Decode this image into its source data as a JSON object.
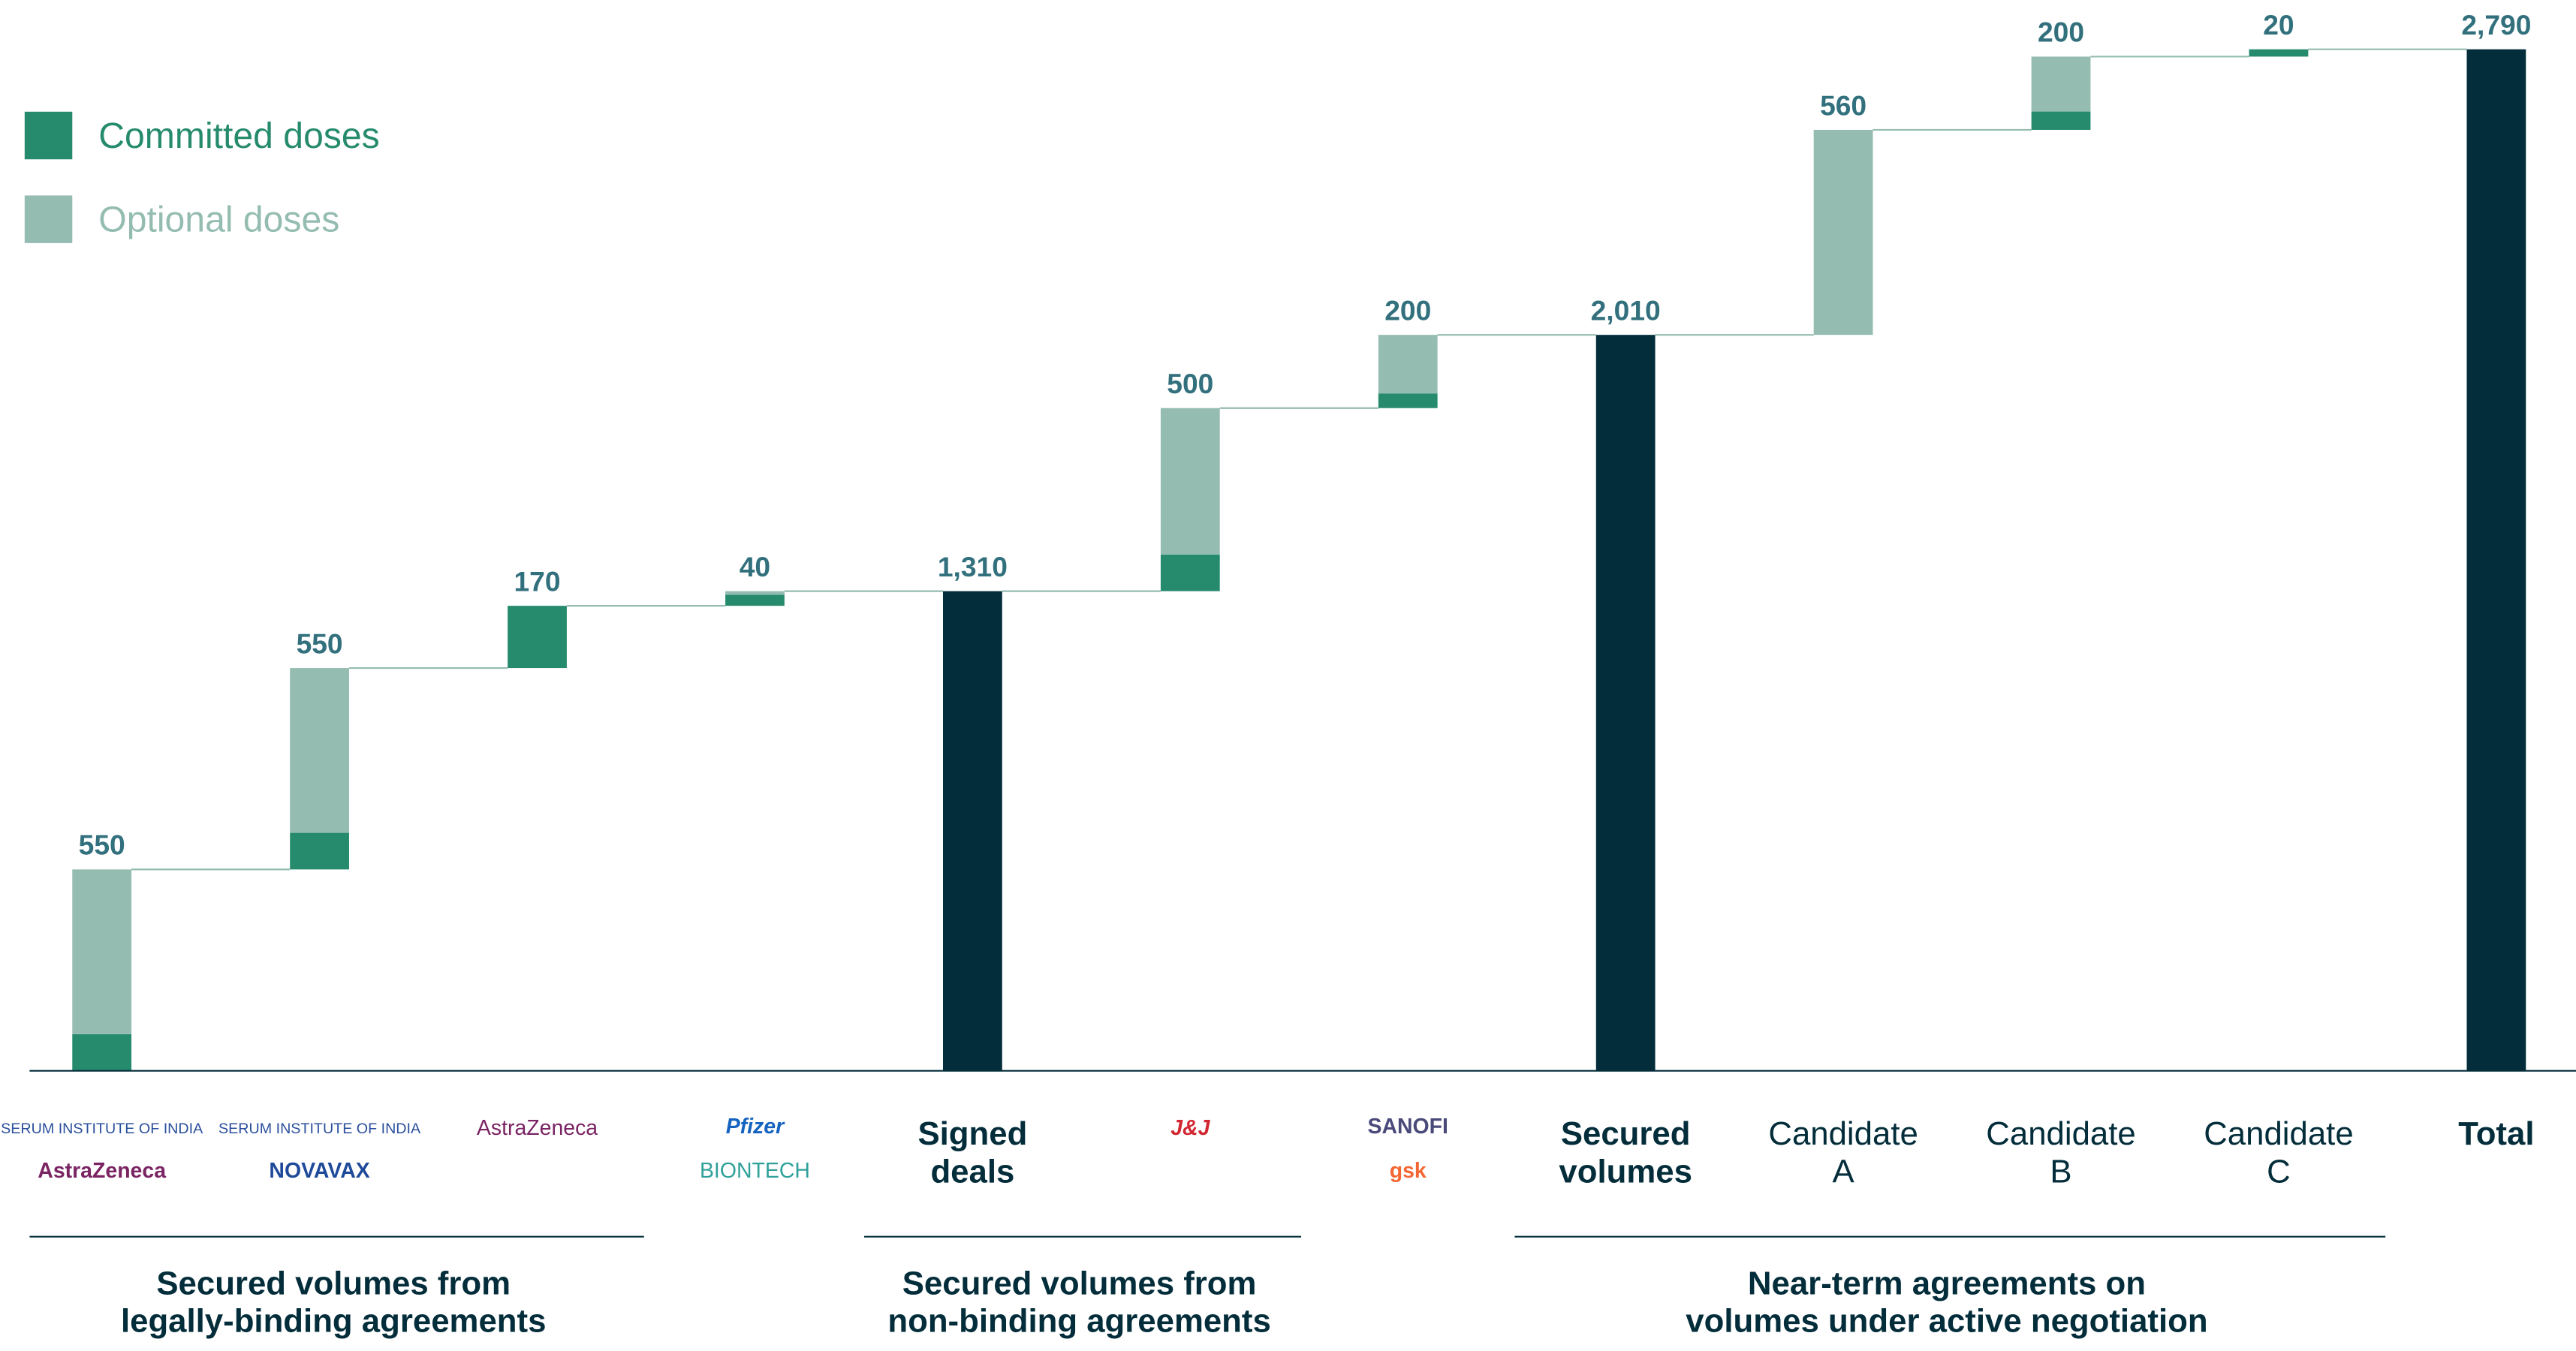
{
  "chart_data": {
    "type": "waterfall",
    "categories": [
      null,
      null,
      null,
      null,
      [
        "Signed",
        "deals"
      ],
      null,
      null,
      [
        "Secured",
        "volumes"
      ],
      [
        "Candidate",
        "A"
      ],
      [
        "Candidate",
        "B"
      ],
      [
        "Candidate",
        "C"
      ],
      [
        "Total"
      ]
    ],
    "logos": [
      [
        {
          "text": "SERUM INSTITUTE OF INDIA",
          "color": "#2a4f9c"
        },
        {
          "text": "AstraZeneca",
          "color": "#7b2463"
        }
      ],
      [
        {
          "text": "SERUM INSTITUTE OF INDIA",
          "color": "#2a4f9c"
        },
        {
          "text": "NOVAVAX",
          "color": "#1f4a9a"
        }
      ],
      [
        {
          "text": "AstraZeneca",
          "color": "#7b2463"
        }
      ],
      [
        {
          "text": "Pfizer",
          "color": "#1563c0"
        },
        {
          "text": "BIONTECH",
          "color": "#2fa19a"
        }
      ],
      null,
      [
        {
          "text": "J&J",
          "color": "#d22630"
        }
      ],
      [
        {
          "text": "SANOFI",
          "color": "#4a4a7a"
        },
        {
          "text": "gsk",
          "color": "#f36633"
        }
      ],
      null,
      null,
      null,
      null,
      null
    ],
    "series": [
      {
        "name": "Committed doses",
        "color": "#268b6c",
        "values": [
          100,
          100,
          170,
          30,
          null,
          100,
          40,
          null,
          0,
          50,
          20,
          null
        ]
      },
      {
        "name": "Optional doses",
        "color": "#94bcb1",
        "values": [
          450,
          450,
          0,
          10,
          null,
          400,
          160,
          null,
          560,
          150,
          0,
          null
        ]
      }
    ],
    "totals": [
      550,
      550,
      170,
      40,
      1310,
      500,
      200,
      2010,
      560,
      200,
      20,
      2790
    ],
    "total_labels": [
      "550",
      "550",
      "170",
      "40",
      "1,310",
      "500",
      "200",
      "2,010",
      "560",
      "200",
      "20",
      "2,790"
    ],
    "subtotal_color": "#032d3a",
    "groups": [
      {
        "label": [
          "Secured volumes from",
          "legally-binding agreements"
        ]
      },
      {
        "label": [
          "Secured volumes from",
          "non-binding agreements"
        ]
      },
      {
        "label": [
          "Near-term agreements on",
          "volumes under active negotiation"
        ]
      }
    ]
  }
}
